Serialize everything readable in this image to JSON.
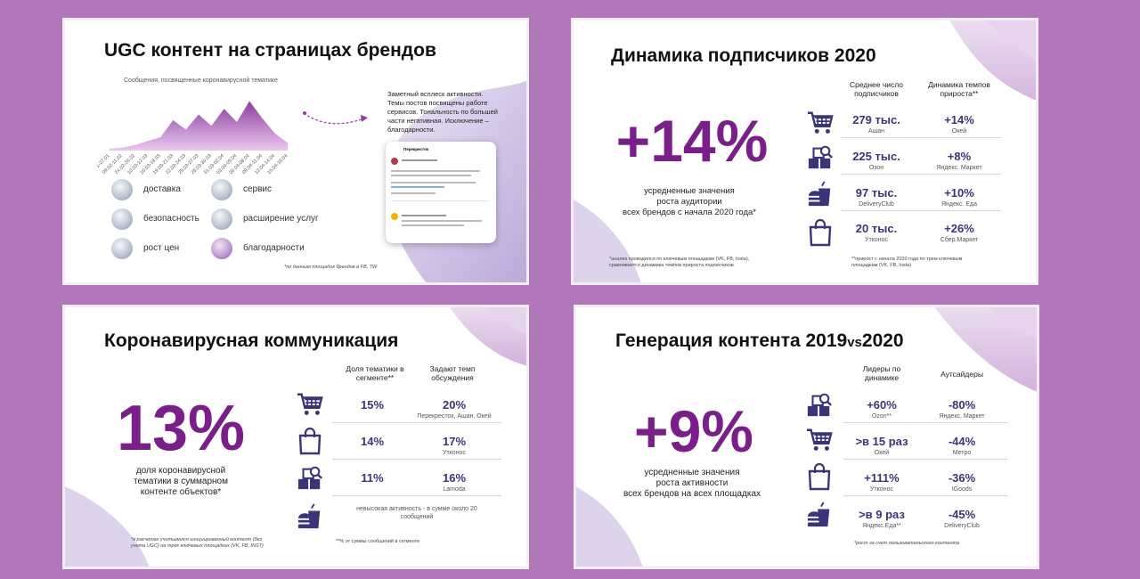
{
  "slide1": {
    "title": "UGC контент на страницах брендов",
    "chart_subtitle": "Сообщения, посвященные коронавирусной тематике",
    "chart_data": {
      "type": "area",
      "title": "",
      "x": [
        "25.01-27.01",
        "09.02-11.02",
        "24.02-26.02",
        "10.03-12.03",
        "16.03-18.03",
        "19.03-21.03",
        "22.03-24.03",
        "25.03-27.03",
        "28.03-30.03",
        "31.03-02.04",
        "03.04-05.04",
        "06.04-08.04",
        "09.04-11.04",
        "12.04-14.04",
        "15.04-16.04"
      ],
      "values": [
        2,
        3,
        6,
        10,
        14,
        32,
        22,
        38,
        26,
        44,
        30,
        52,
        34,
        18,
        8
      ],
      "ylim": [
        0,
        60
      ]
    },
    "callout_lines": [
      "Заметный всплеск активности.",
      "Темы постов посвящены работе",
      "сервисов. Тональность по большей",
      "части негативная. Исключение –",
      "благодарности."
    ],
    "phone_header": "Перекресток",
    "legend": [
      "доставка",
      "сервис",
      "безопасность",
      "расширение услуг",
      "рост цен",
      "благодарности"
    ],
    "footnote": "*по данным площадок брендов в  FB, TW"
  },
  "slide2": {
    "title": "Динамика подписчиков 2020",
    "big": "+14%",
    "desc_lines": [
      "усредненные значения",
      "роста аудитории",
      "всех брендов с начала 2020 года*"
    ],
    "col1_lines": [
      "Среднее число",
      "подписчиков"
    ],
    "col2_lines": [
      "Динамика темпов",
      "прироста**"
    ],
    "rows": [
      {
        "icon": "shopping-cart-icon",
        "v1": "279 тыс.",
        "s1": "Ашан",
        "v2": "+14%",
        "s2": "Окей"
      },
      {
        "icon": "boxes-icon",
        "v1": "225 тыс.",
        "s1": "Озон",
        "v2": "+8%",
        "s2": "Яндекс. Маркет"
      },
      {
        "icon": "fast-food-icon",
        "v1": "97 тыс.",
        "s1": "DeliveryClub",
        "v2": "+10%",
        "s2": "Яндекс. Еда"
      },
      {
        "icon": "shopping-bag-icon",
        "v1": "20 тыс.",
        "s1": "Утконос",
        "v2": "+26%",
        "s2": "Сбер.Маркет"
      }
    ],
    "footnote1_lines": [
      "*анализ проводился по ключевым площадкам (VK, FB, Insta),",
      "сравнивается динамика темпов прироста подписчиков"
    ],
    "footnote2_lines": [
      "**прирост с начала 2020 года по трем ключевым",
      "площадкам (VK, FB, Insta)"
    ]
  },
  "slide3": {
    "title": "Коронавирусная коммуникация",
    "big": "13%",
    "desc_lines": [
      "доля коронавирусной",
      "тематики в суммарном",
      "контенте объектов*"
    ],
    "col1_lines": [
      "Доля тематики в",
      "сегменте**"
    ],
    "col2_lines": [
      "Задают темп",
      "обсуждения"
    ],
    "rows": [
      {
        "icon": "shopping-cart-icon",
        "v1": "15%",
        "v2": "20%",
        "s2": "Перекресток, Ашан, Окей"
      },
      {
        "icon": "shopping-bag-icon",
        "v1": "14%",
        "v2": "17%",
        "s2": "Утконос"
      },
      {
        "icon": "boxes-icon",
        "v1": "11%",
        "v2": "16%",
        "s2": "Lamoda"
      }
    ],
    "last_row_lines": [
      "невысокая активность - в сумме около 20",
      "сообщений"
    ],
    "footnote1_lines": [
      "*в расчетах учитывался инициированный контент (без",
      "учета UGC) на трех ключевых площадках (VK, FB, INST)"
    ],
    "footnote2": "**% от суммы сообщений в сегменте"
  },
  "slide4": {
    "title_main": "Генерация контента 2019",
    "title_vs": "vs",
    "title_end": "2020",
    "big": "+9%",
    "desc_lines": [
      "усредненные значения",
      "роста активности",
      "всех брендов на всех площадках"
    ],
    "col1_lines": [
      "Лидеры по",
      "динамике"
    ],
    "col2": "Аутсайдеры",
    "rows": [
      {
        "icon": "boxes-icon",
        "v1": "+60%",
        "s1": "Ozon**",
        "v2": "-80%",
        "s2": "Яндекс. Маркет"
      },
      {
        "icon": "shopping-cart-icon",
        "v1": ">в 15 раз",
        "s1": "Окей",
        "v2": "-44%",
        "s2": "Метро"
      },
      {
        "icon": "shopping-bag-icon",
        "v1": "+111%",
        "s1": "Утконос",
        "v2": "-36%",
        "s2": "IGoods"
      },
      {
        "icon": "fast-food-icon",
        "v1": ">в 9 раз",
        "s1": "Яндекс.Еда**",
        "v2": "-45%",
        "s2": "DeliveryClub"
      }
    ],
    "footnote": "*рост за счет пользовательского контента"
  }
}
